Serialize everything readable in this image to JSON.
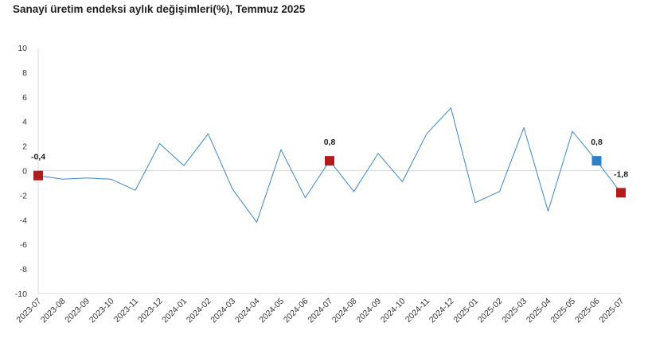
{
  "title": "Sanayi üretim endeksi aylık değişimleri(%), Temmuz 2025",
  "colors": {
    "line": "#3a86c8",
    "marker_red": "#b31c1c",
    "marker_blue": "#2f7fc4",
    "axis": "#d9d9d9",
    "text": "#333333"
  },
  "chart_data": {
    "type": "line",
    "title": "Sanayi üretim endeksi aylık değişimleri(%), Temmuz 2025",
    "xlabel": "",
    "ylabel": "",
    "ylim": [
      -10,
      10
    ],
    "y_ticks": [
      10,
      8,
      6,
      4,
      2,
      0,
      -2,
      -4,
      -6,
      -8,
      -10
    ],
    "grid": false,
    "legend": "none",
    "categories": [
      "2023-07",
      "2023-08",
      "2023-09",
      "2023-10",
      "2023-11",
      "2023-12",
      "2024-01",
      "2024-02",
      "2024-03",
      "2024-04",
      "2024-05",
      "2024-06",
      "2024-07",
      "2024-08",
      "2024-09",
      "2024-10",
      "2024-11",
      "2024-12",
      "2025-01",
      "2025-02",
      "2025-03",
      "2025-04",
      "2025-05",
      "2025-06",
      "2025-07"
    ],
    "series": [
      {
        "values": [
          -0.4,
          -0.7,
          -0.6,
          -0.7,
          -1.6,
          2.2,
          0.4,
          3.0,
          -1.5,
          -4.2,
          1.7,
          -2.2,
          0.8,
          -1.7,
          1.4,
          -0.9,
          3.0,
          5.1,
          -2.6,
          -1.7,
          3.5,
          -3.3,
          3.2,
          0.8,
          -1.8
        ]
      }
    ],
    "highlighted_points": [
      {
        "category": "2023-07",
        "value": -0.4,
        "label": "-0,4",
        "color": "marker_red"
      },
      {
        "category": "2024-07",
        "value": 0.8,
        "label": "0,8",
        "color": "marker_red"
      },
      {
        "category": "2025-06",
        "value": 0.8,
        "label": "0,8",
        "color": "marker_blue"
      },
      {
        "category": "2025-07",
        "value": -1.8,
        "label": "-1,8",
        "color": "marker_red"
      }
    ]
  }
}
